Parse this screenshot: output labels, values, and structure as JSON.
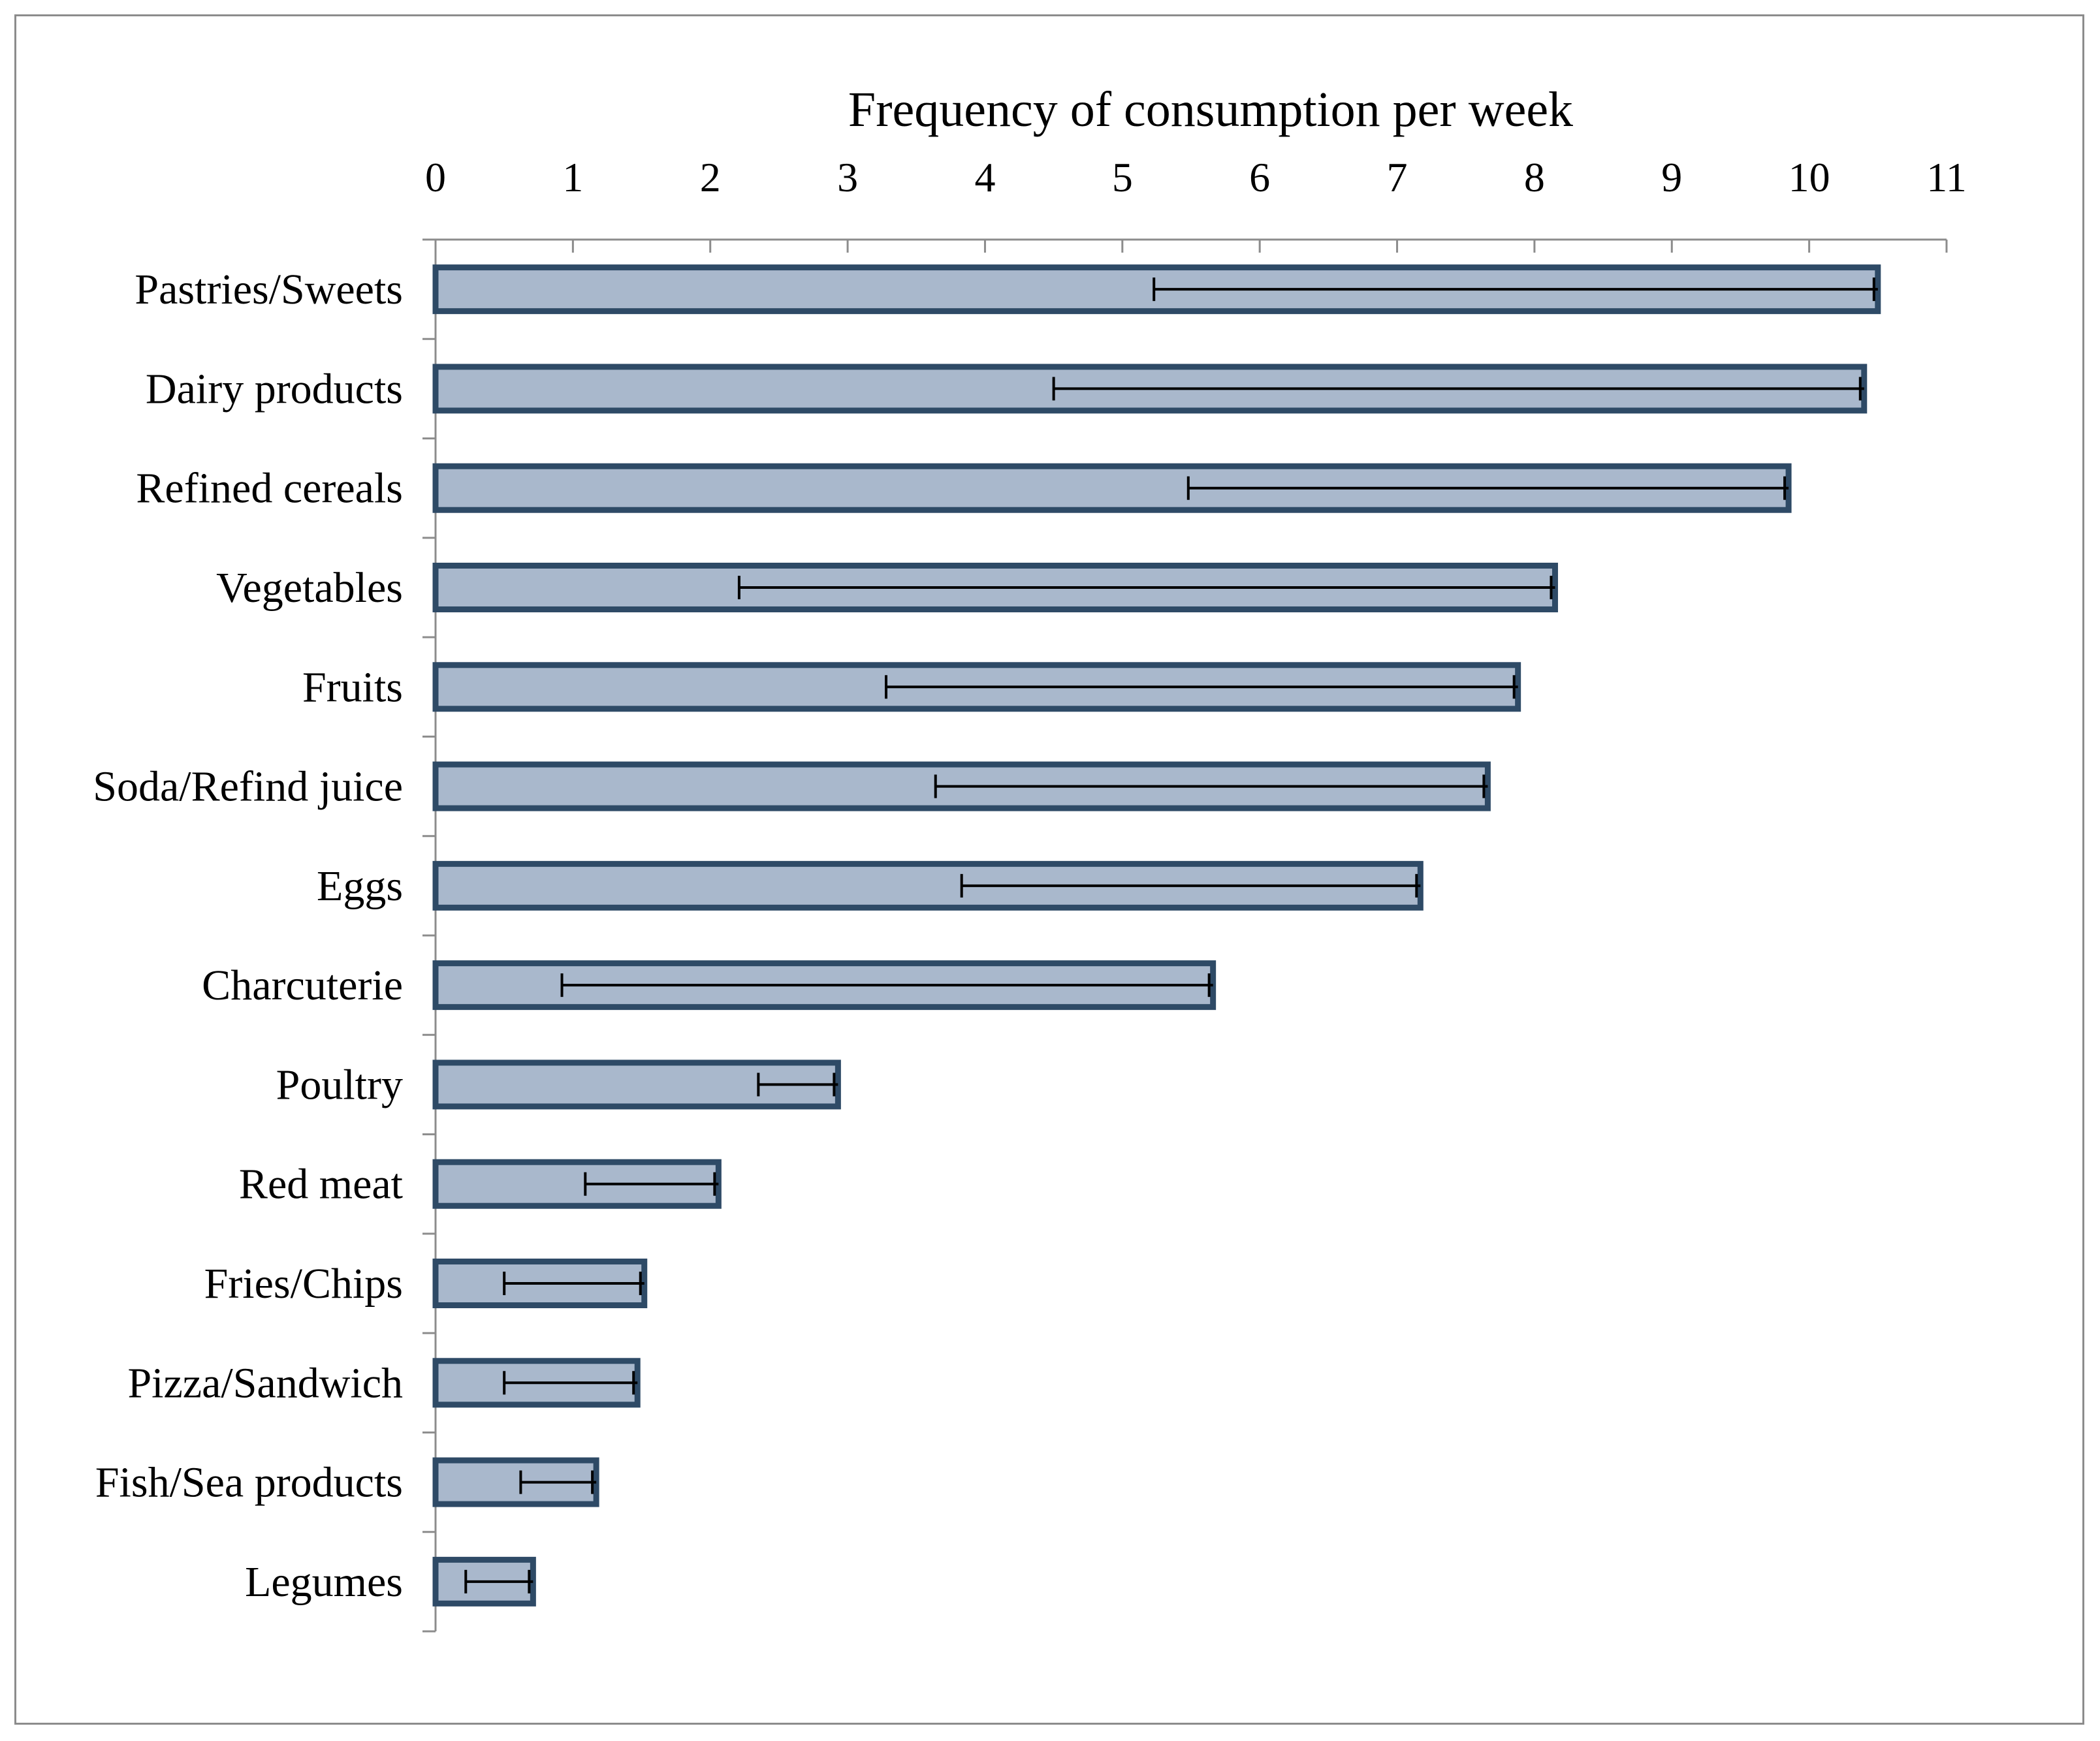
{
  "chart_data": {
    "type": "bar",
    "orientation": "horizontal",
    "title": "",
    "xlabel": "Frequency of consumption per week",
    "ylabel": "",
    "xlim": [
      0,
      11
    ],
    "x_ticks": [
      "0",
      "1",
      "2",
      "3",
      "4",
      "5",
      "6",
      "7",
      "8",
      "9",
      "10",
      "11"
    ],
    "grid": false,
    "legend": "none",
    "bar_color": "#a9b8cc",
    "bar_edge_color": "#2e4a66",
    "error_bar_color": "#000000",
    "categories": [
      "Pastries/Sweets",
      "Dairy products",
      "Refined cereals",
      "Vegetables",
      "Fruits",
      "Soda/Refind juice",
      "Eggs",
      "Charcuterie",
      "Poultry",
      "Red meat",
      "Fries/Chips",
      "Pizza/Sandwich",
      "Fish/Sea products",
      "Legumes"
    ],
    "values": [
      10.5,
      10.4,
      9.85,
      8.15,
      7.88,
      7.66,
      7.17,
      5.66,
      2.93,
      2.06,
      1.52,
      1.47,
      1.17,
      0.71
    ],
    "error_lower": [
      5.23,
      4.5,
      5.48,
      2.21,
      3.28,
      3.64,
      3.83,
      0.92,
      2.35,
      1.09,
      0.5,
      0.5,
      0.62,
      0.22
    ]
  }
}
